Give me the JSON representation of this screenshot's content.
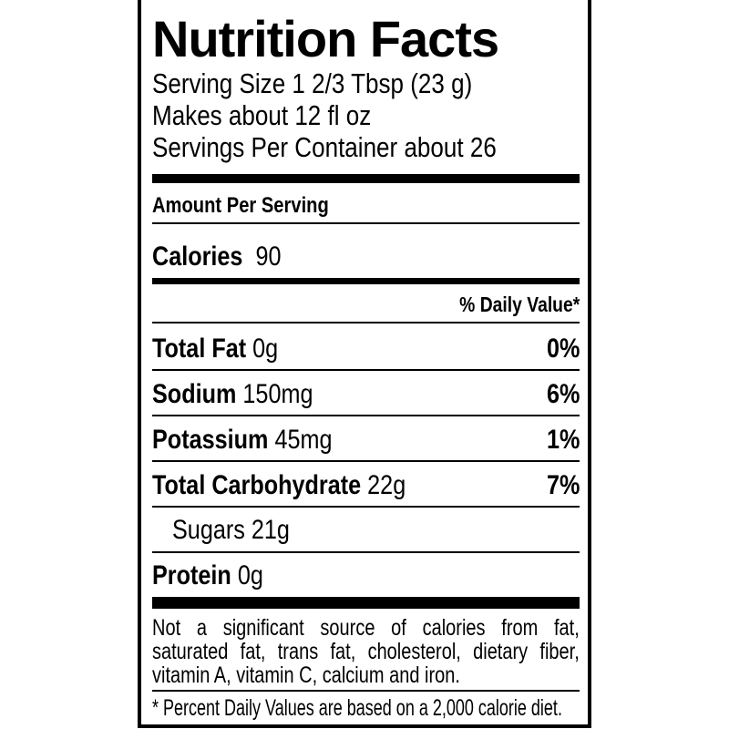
{
  "title": "Nutrition Facts",
  "serving_size": "Serving Size 1 2/3 Tbsp (23 g)",
  "makes": "Makes  about 12 fl oz",
  "servings_per_container": "Servings Per Container about 26",
  "amount_per_serving": "Amount Per Serving",
  "calories": {
    "label": "Calories",
    "value": "90"
  },
  "daily_value_header": "% Daily Value*",
  "nutrients": [
    {
      "label": "Total Fat",
      "amount": "0g",
      "dv": "0%"
    },
    {
      "label": "Sodium",
      "amount": "150mg",
      "dv": "6%"
    },
    {
      "label": "Potassium",
      "amount": "45mg",
      "dv": "1%"
    },
    {
      "label": "Total Carbohydrate",
      "amount": "22g",
      "dv": "7%"
    },
    {
      "label": "Sugars",
      "amount": "21g",
      "dv": ""
    },
    {
      "label": "Protein",
      "amount": "0g",
      "dv": ""
    }
  ],
  "footnote_lines": [
    "Not a significant source of calories from fat,",
    "saturated fat, trans fat, cholesterol, dietary fiber,",
    "vitamin A, vitamin C, calcium and iron."
  ],
  "dv_footnote": "* Percent Daily Values are based on a 2,000 calorie diet."
}
